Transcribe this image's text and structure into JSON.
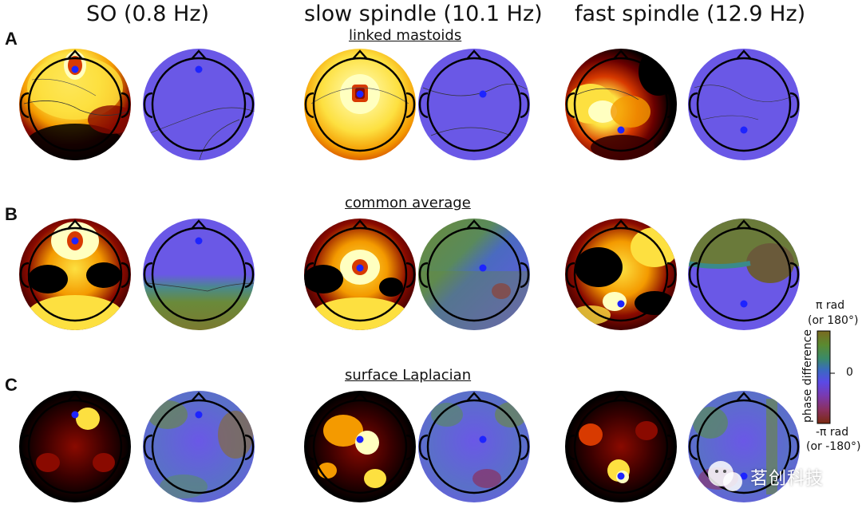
{
  "columns": {
    "so": "SO (0.8 Hz)",
    "slow": "slow spindle (10.1 Hz)",
    "fast": "fast spindle (12.9 Hz)"
  },
  "rows": [
    {
      "label": "A",
      "reference": "linked mastoids"
    },
    {
      "label": "B",
      "reference": "common average"
    },
    {
      "label": "C",
      "reference": "surface Laplacian"
    }
  ],
  "colorbar": {
    "title": "phase difference",
    "top_label": "π rad",
    "top_sub": "(or 180°)",
    "mid_label": "0",
    "bottom_label": "-π rad",
    "bottom_sub": "(or -180°)",
    "colors": [
      "#8a6a1c",
      "#6b8a2e",
      "#3e8a5c",
      "#3a7ab0",
      "#6a4ae0",
      "#7a3ab0",
      "#8a3a5a",
      "#8a2a1a"
    ]
  },
  "palette": {
    "power": [
      "#000000",
      "#3a0000",
      "#8a0a00",
      "#d83a00",
      "#f49a00",
      "#fde040",
      "#ffffc0"
    ],
    "phase_base": "#6a58e6",
    "seed_dot": "#1d24ff"
  },
  "watermark": "茗创科技"
}
